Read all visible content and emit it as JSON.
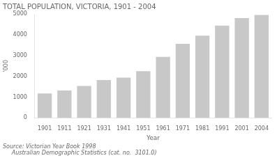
{
  "chart_data": {
    "type": "bar",
    "title": "TOTAL POPULATION, VICTORIA, 1901 - 2004",
    "ylabel": "'000",
    "xlabel": "Year",
    "categories": [
      "1901",
      "1911",
      "1921",
      "1931",
      "1941",
      "1951",
      "1961",
      "1971",
      "1981",
      "1991",
      "2001",
      "2004"
    ],
    "values": [
      1180,
      1320,
      1540,
      1820,
      1940,
      2250,
      2930,
      3560,
      3950,
      4440,
      4800,
      4950
    ],
    "color": "#c8c8c8",
    "ylim": [
      0,
      5000
    ],
    "yticks": [
      0,
      1000,
      2000,
      3000,
      4000,
      5000
    ],
    "grid": false,
    "annotations": [
      "Source: Victorian Year Book 1998",
      "     Australian Demographic Statistics (cat. no.  3101.0)"
    ]
  }
}
